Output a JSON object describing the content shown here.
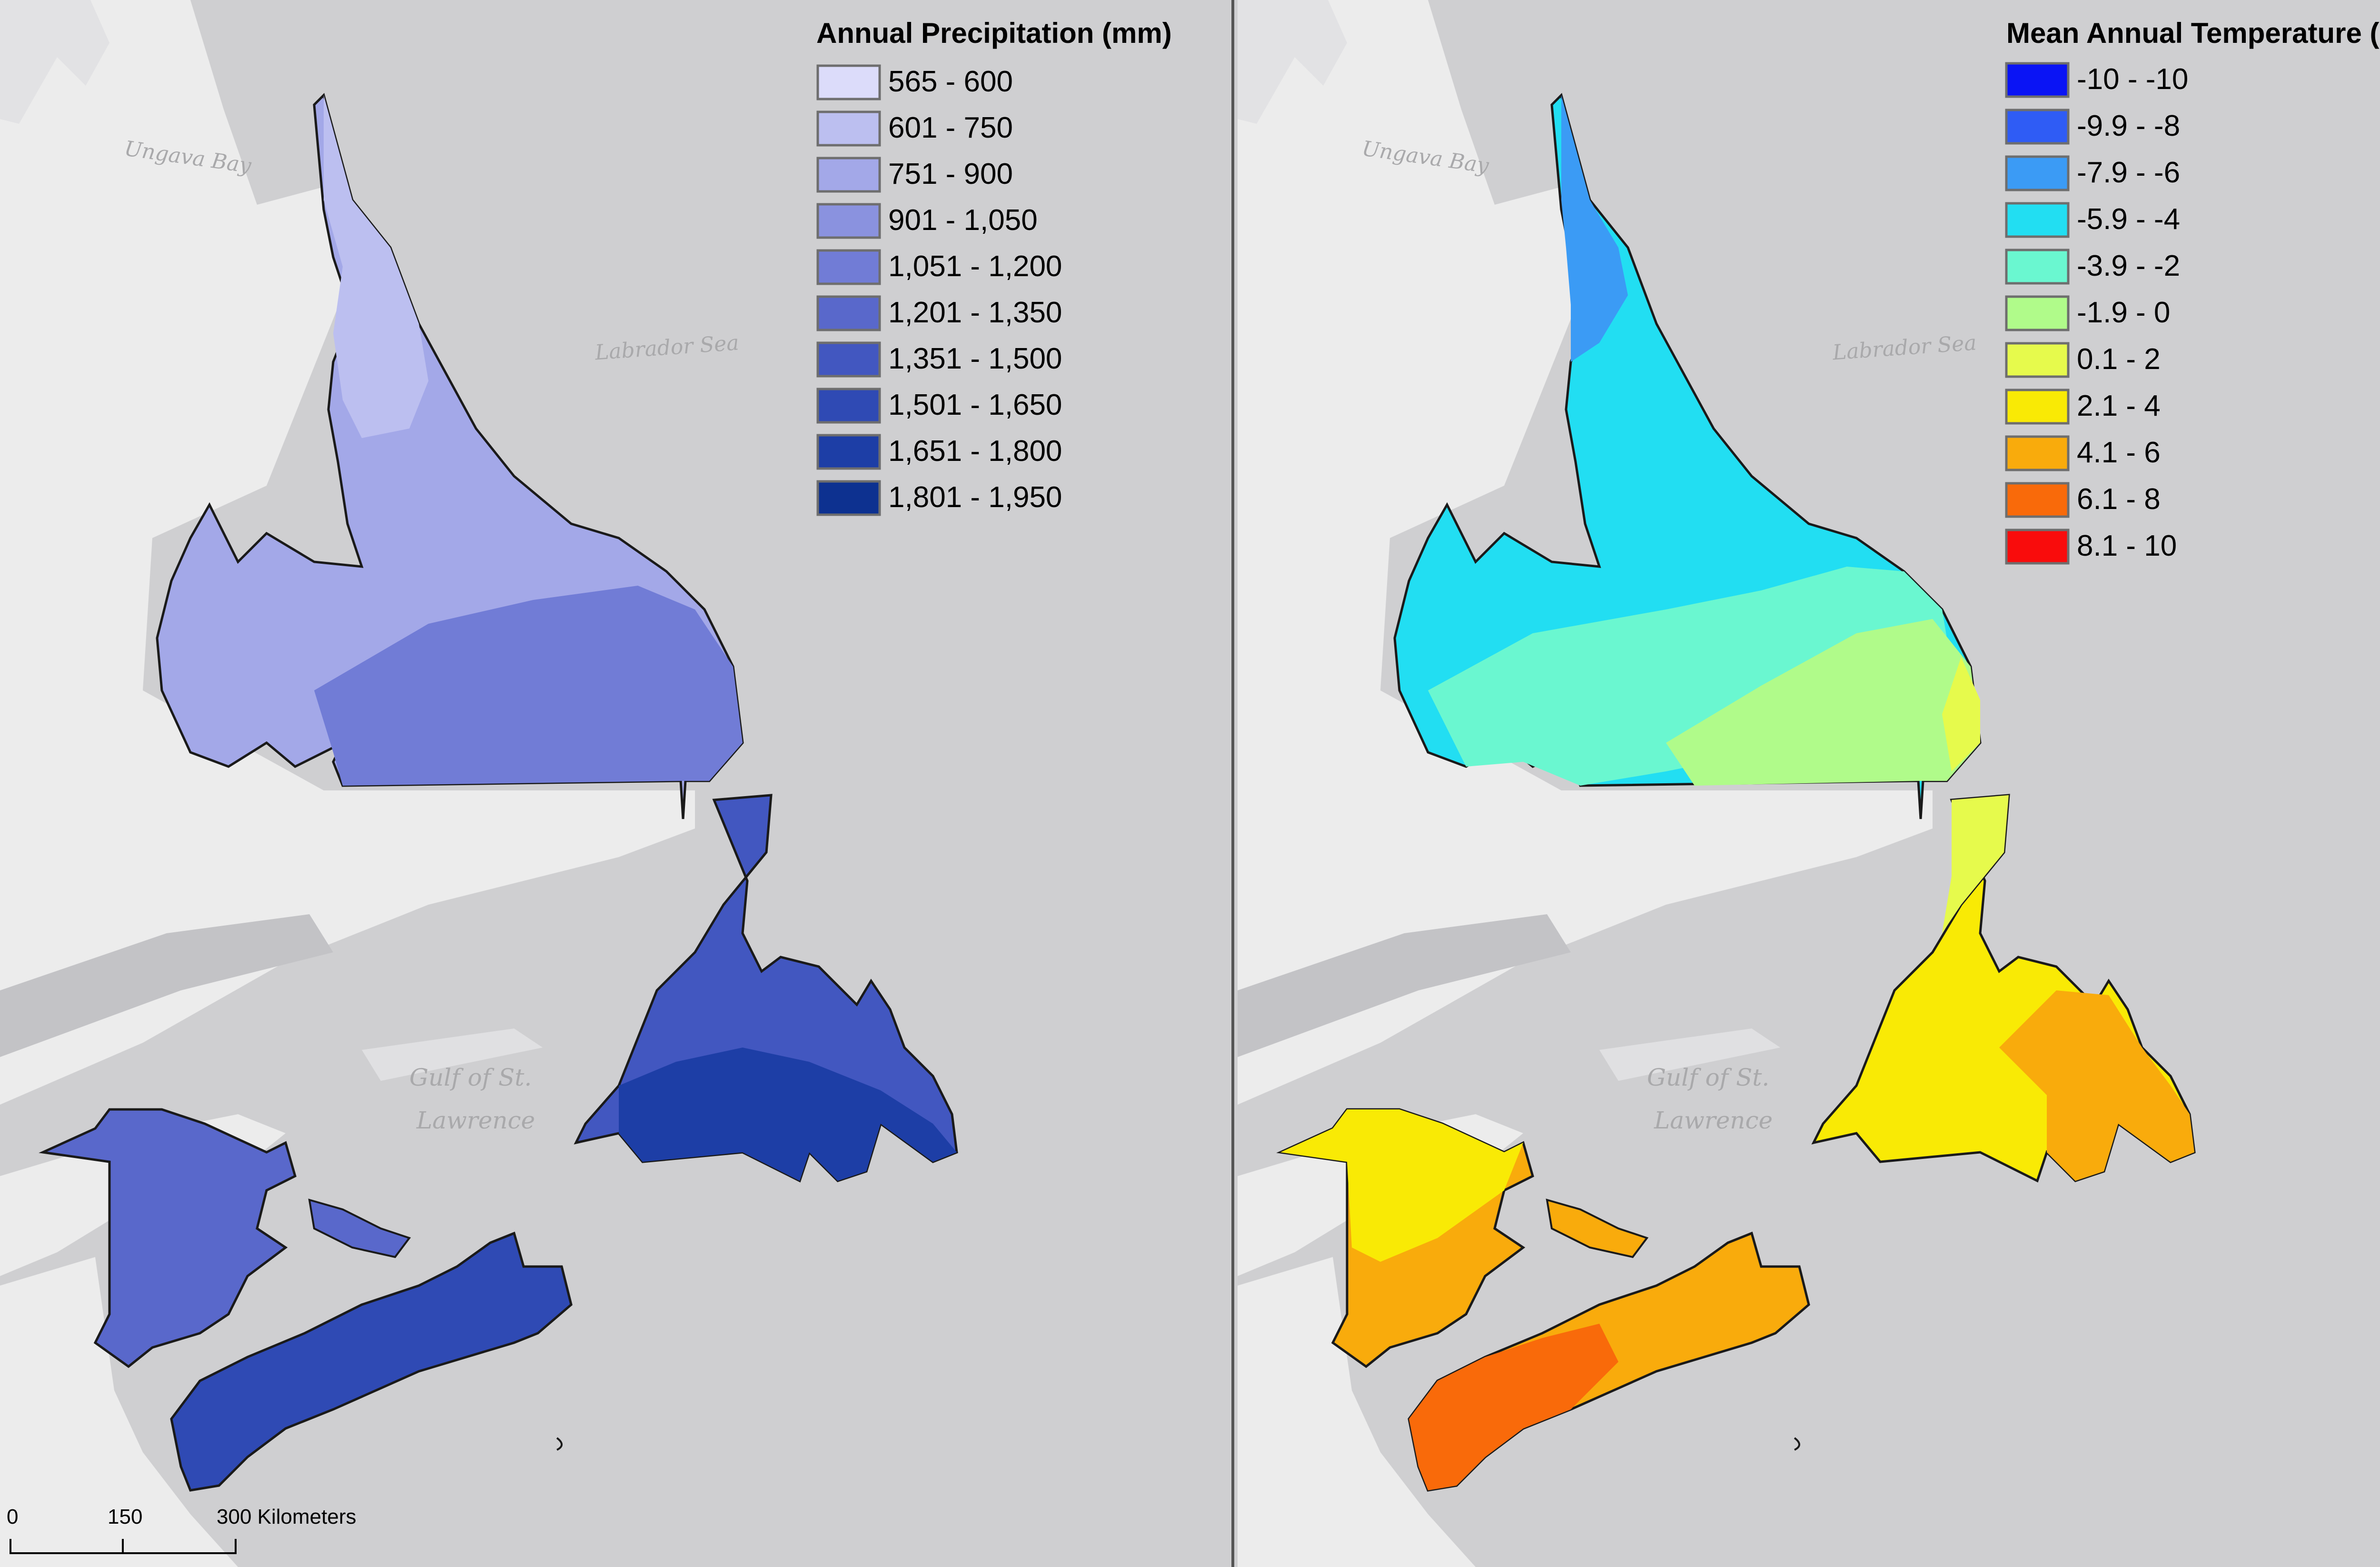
{
  "place_labels": {
    "ungava_bay": "Ungava Bay",
    "labrador_sea": "Labrador Sea",
    "gulf_line1": "Gulf of St.",
    "gulf_line2": "Lawrence"
  },
  "precipitation_legend": {
    "title": "Annual Precipitation (mm)",
    "items": [
      {
        "label": "565 - 600",
        "color": "#dcdcfa"
      },
      {
        "label": "601 - 750",
        "color": "#bcbff0"
      },
      {
        "label": "751 - 900",
        "color": "#a3a8e8"
      },
      {
        "label": "901 - 1,050",
        "color": "#8a92df"
      },
      {
        "label": "1,051 - 1,200",
        "color": "#717cd6"
      },
      {
        "label": "1,201 - 1,350",
        "color": "#5968cb"
      },
      {
        "label": "1,351 - 1,500",
        "color": "#4257c0"
      },
      {
        "label": "1,501 - 1,650",
        "color": "#2f4ab4"
      },
      {
        "label": "1,651 - 1,800",
        "color": "#1d3ea6"
      },
      {
        "label": "1,801 - 1,950",
        "color": "#0d3190"
      }
    ]
  },
  "temperature_legend": {
    "title": "Mean Annual Temperature (C)",
    "items": [
      {
        "label": "-10 - -10",
        "color": "#0a14f5"
      },
      {
        "label": "-9.9 - -8",
        "color": "#2f5cf5"
      },
      {
        "label": "-7.9 - -6",
        "color": "#3b9bf5"
      },
      {
        "label": "-5.9 - -4",
        "color": "#22def2"
      },
      {
        "label": "-3.9 - -2",
        "color": "#6af7d0"
      },
      {
        "label": "-1.9 - 0",
        "color": "#b0fb8a"
      },
      {
        "label": "0.1 - 2",
        "color": "#e6fa4c"
      },
      {
        "label": "2.1 - 4",
        "color": "#f9ea05"
      },
      {
        "label": "4.1 - 6",
        "color": "#f9ab0c"
      },
      {
        "label": "6.1 - 8",
        "color": "#f96a0a"
      },
      {
        "label": "8.1 - 10",
        "color": "#f90c0c"
      }
    ]
  },
  "scale_bar": {
    "labels": [
      "0",
      "150",
      "300 Kilometers"
    ]
  },
  "colors": {
    "water": "#cfcfd1",
    "land": "#ececec",
    "land_shadow": "#dadadc",
    "outline": "#1a1a1a",
    "divider": "#555555"
  }
}
